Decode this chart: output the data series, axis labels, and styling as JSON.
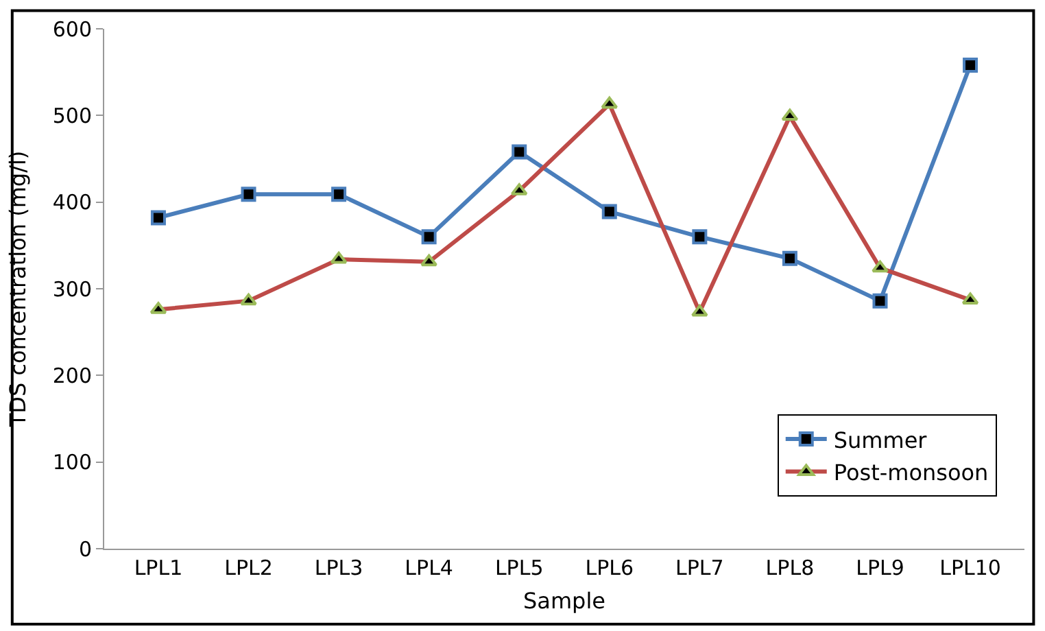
{
  "chart_data": {
    "type": "line",
    "xlabel": "Sample",
    "ylabel": "TDS concentration (mg/l)",
    "categories": [
      "LPL1",
      "LPL2",
      "LPL3",
      "LPL4",
      "LPL5",
      "LPL6",
      "LPL7",
      "LPL8",
      "LPL9",
      "LPL10"
    ],
    "series": [
      {
        "name": "Summer",
        "color": "#4a7ebb",
        "marker": "square",
        "values": [
          382,
          409,
          409,
          360,
          458,
          389,
          360,
          335,
          286,
          558
        ]
      },
      {
        "name": "Post-monsoon",
        "color": "#be4b48",
        "marker": "triangle",
        "values": [
          276,
          286,
          334,
          331,
          413,
          513,
          273,
          499,
          324,
          287
        ]
      }
    ],
    "ylim": [
      0,
      600
    ],
    "yticks": [
      0,
      100,
      200,
      300,
      400,
      500,
      600
    ],
    "legend": "bottom right"
  }
}
